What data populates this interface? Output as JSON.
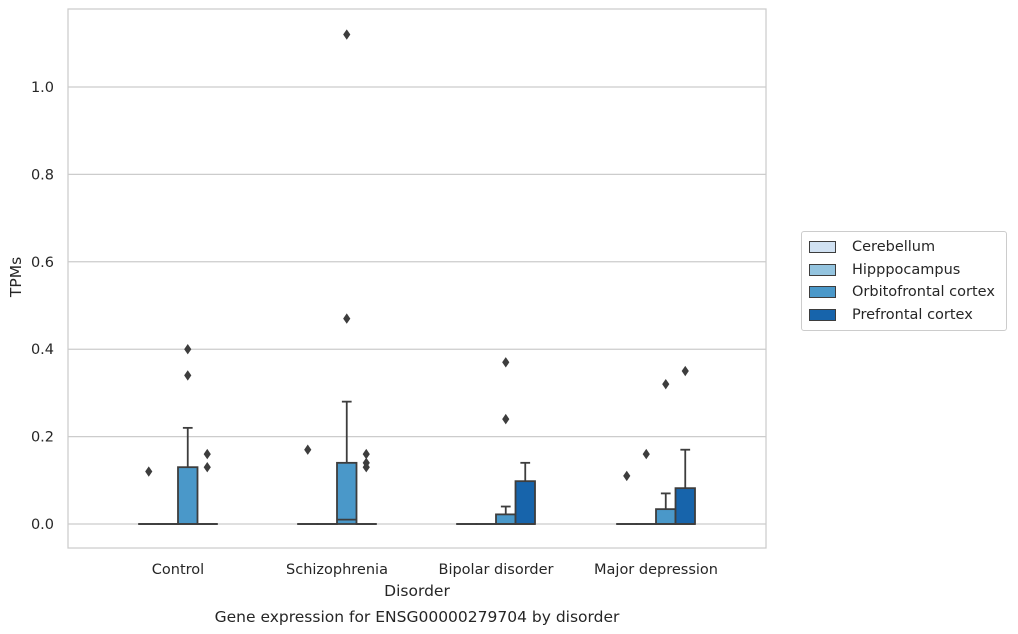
{
  "chart_data": {
    "type": "box",
    "title": "",
    "caption": "Gene expression for ENSG00000279704 by disorder",
    "xlabel": "Disorder",
    "ylabel": "TPMs",
    "categories": [
      "Control",
      "Schizophrenia",
      "Bipolar disorder",
      "Major depression"
    ],
    "ylim": [
      -0.055,
      1.175
    ],
    "yticks": [
      "0.0",
      "0.2",
      "0.4",
      "0.6",
      "0.8",
      "1.0"
    ],
    "ytick_values": [
      0.0,
      0.2,
      0.4,
      0.6,
      0.8,
      1.0
    ],
    "grid": "horizontal",
    "legend_position": "center-right outside",
    "series": [
      {
        "name": "Cerebellum",
        "color": "#d0e1f2",
        "boxes": [
          {
            "q1": 0.0,
            "median": 0.0,
            "q3": 0.0,
            "whisker_low": 0.0,
            "whisker_high": 0.0,
            "outliers": [
              0.12
            ]
          },
          {
            "q1": 0.0,
            "median": 0.0,
            "q3": 0.0,
            "whisker_low": 0.0,
            "whisker_high": 0.0,
            "outliers": [
              0.17
            ]
          },
          {
            "q1": 0.0,
            "median": 0.0,
            "q3": 0.0,
            "whisker_low": 0.0,
            "whisker_high": 0.0,
            "outliers": []
          },
          {
            "q1": 0.0,
            "median": 0.0,
            "q3": 0.0,
            "whisker_low": 0.0,
            "whisker_high": 0.0,
            "outliers": [
              0.11
            ]
          }
        ]
      },
      {
        "name": "Hipppocampus",
        "color": "#94c4df",
        "boxes": [
          {
            "q1": 0.0,
            "median": 0.0,
            "q3": 0.0,
            "whisker_low": 0.0,
            "whisker_high": 0.0,
            "outliers": []
          },
          {
            "q1": 0.0,
            "median": 0.0,
            "q3": 0.0,
            "whisker_low": 0.0,
            "whisker_high": 0.0,
            "outliers": []
          },
          {
            "q1": 0.0,
            "median": 0.0,
            "q3": 0.0,
            "whisker_low": 0.0,
            "whisker_high": 0.0,
            "outliers": []
          },
          {
            "q1": 0.0,
            "median": 0.0,
            "q3": 0.0,
            "whisker_low": 0.0,
            "whisker_high": 0.0,
            "outliers": [
              0.16
            ]
          }
        ]
      },
      {
        "name": "Orbitofrontal cortex",
        "color": "#4a98c9",
        "boxes": [
          {
            "q1": 0.0,
            "median": 0.0,
            "q3": 0.13,
            "whisker_low": 0.0,
            "whisker_high": 0.22,
            "outliers": [
              0.4,
              0.34
            ]
          },
          {
            "q1": 0.0,
            "median": 0.01,
            "q3": 0.14,
            "whisker_low": 0.0,
            "whisker_high": 0.28,
            "outliers": [
              1.12,
              0.47
            ]
          },
          {
            "q1": 0.0,
            "median": 0.0,
            "q3": 0.022,
            "whisker_low": 0.0,
            "whisker_high": 0.04,
            "outliers": [
              0.37,
              0.24
            ]
          },
          {
            "q1": 0.0,
            "median": 0.0,
            "q3": 0.034,
            "whisker_low": 0.0,
            "whisker_high": 0.07,
            "outliers": [
              0.32
            ]
          }
        ]
      },
      {
        "name": "Prefrontal cortex",
        "color": "#1764ab",
        "boxes": [
          {
            "q1": 0.0,
            "median": 0.0,
            "q3": 0.0,
            "whisker_low": 0.0,
            "whisker_high": 0.0,
            "outliers": [
              0.16,
              0.13
            ]
          },
          {
            "q1": 0.0,
            "median": 0.0,
            "q3": 0.0,
            "whisker_low": 0.0,
            "whisker_high": 0.0,
            "outliers": [
              0.16,
              0.14,
              0.13
            ]
          },
          {
            "q1": 0.0,
            "median": 0.0,
            "q3": 0.098,
            "whisker_low": 0.0,
            "whisker_high": 0.14,
            "outliers": []
          },
          {
            "q1": 0.0,
            "median": 0.0,
            "q3": 0.082,
            "whisker_low": 0.0,
            "whisker_high": 0.17,
            "outliers": [
              0.35
            ]
          }
        ]
      }
    ]
  }
}
